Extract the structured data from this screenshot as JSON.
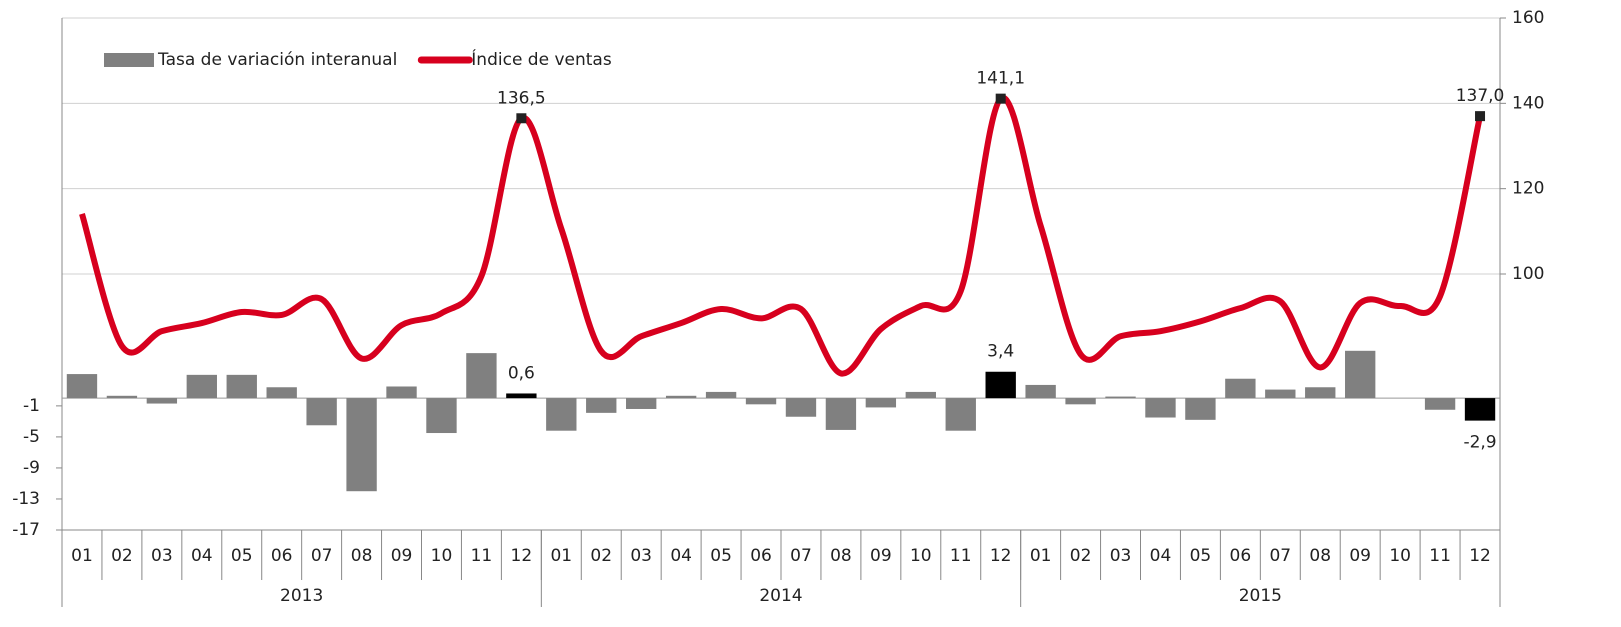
{
  "chart_data": {
    "type": "bar_line",
    "categories": [
      "01",
      "02",
      "03",
      "04",
      "05",
      "06",
      "07",
      "08",
      "09",
      "10",
      "11",
      "12",
      "01",
      "02",
      "03",
      "04",
      "05",
      "06",
      "07",
      "08",
      "09",
      "10",
      "11",
      "12",
      "01",
      "02",
      "03",
      "04",
      "05",
      "06",
      "07",
      "08",
      "09",
      "10",
      "11",
      "12"
    ],
    "years": [
      "2013",
      "2014",
      "2015"
    ],
    "series": [
      {
        "name": "Tasa de variación interanual",
        "type": "bar",
        "axis": "y",
        "color": "#808080",
        "colors": [
          "#808080",
          "#808080",
          "#808080",
          "#808080",
          "#808080",
          "#808080",
          "#808080",
          "#808080",
          "#808080",
          "#808080",
          "#808080",
          "#000000",
          "#808080",
          "#808080",
          "#808080",
          "#808080",
          "#808080",
          "#808080",
          "#808080",
          "#808080",
          "#808080",
          "#808080",
          "#808080",
          "#000000",
          "#808080",
          "#808080",
          "#808080",
          "#808080",
          "#808080",
          "#808080",
          "#808080",
          "#808080",
          "#808080",
          "#808080",
          "#808080",
          "#000000"
        ],
        "values": [
          3.1,
          0.3,
          -0.7,
          3.0,
          3.0,
          1.4,
          -3.5,
          -12.0,
          1.5,
          -4.5,
          5.8,
          0.6,
          -4.2,
          -1.9,
          -1.4,
          0.3,
          0.8,
          -0.8,
          -2.4,
          -4.1,
          -1.2,
          0.8,
          -4.2,
          3.4,
          1.7,
          -0.8,
          0.2,
          -2.5,
          -2.8,
          2.5,
          1.1,
          1.4,
          6.1,
          0,
          -1.5,
          -2.9
        ],
        "value_labels": [
          null,
          null,
          null,
          null,
          null,
          null,
          null,
          null,
          null,
          null,
          null,
          "0,6",
          null,
          null,
          null,
          null,
          null,
          null,
          null,
          null,
          null,
          null,
          null,
          "3,4",
          null,
          null,
          null,
          null,
          null,
          null,
          null,
          null,
          null,
          null,
          null,
          "-2,9"
        ]
      },
      {
        "name": "Índice de ventas",
        "type": "line",
        "axis": "y2",
        "color": "#d7001e",
        "values": [
          114.1,
          83.1,
          86.6,
          88.5,
          91.1,
          90.4,
          94.1,
          80.2,
          88.0,
          90.8,
          99.5,
          136.5,
          110.6,
          81.9,
          85.4,
          88.5,
          91.8,
          89.6,
          91.8,
          76.7,
          87.1,
          92.5,
          96.0,
          141.1,
          111.3,
          81.2,
          85.4,
          86.6,
          88.9,
          92.0,
          93.6,
          78.1,
          93.2,
          92.5,
          94.8,
          137.0
        ],
        "value_labels": [
          null,
          null,
          null,
          null,
          null,
          null,
          null,
          null,
          null,
          null,
          null,
          "136,5",
          null,
          null,
          null,
          null,
          null,
          null,
          null,
          null,
          null,
          null,
          null,
          "141,1",
          null,
          null,
          null,
          null,
          null,
          null,
          null,
          null,
          null,
          null,
          null,
          "137,0"
        ]
      }
    ],
    "ylim": [
      -17,
      49
    ],
    "yticks": [
      -17,
      -13,
      -9,
      -5,
      -1
    ],
    "y2lim": [
      40,
      160
    ],
    "y2ticks": [
      100,
      120,
      140,
      160
    ],
    "grid": true,
    "legend": "top-left"
  }
}
